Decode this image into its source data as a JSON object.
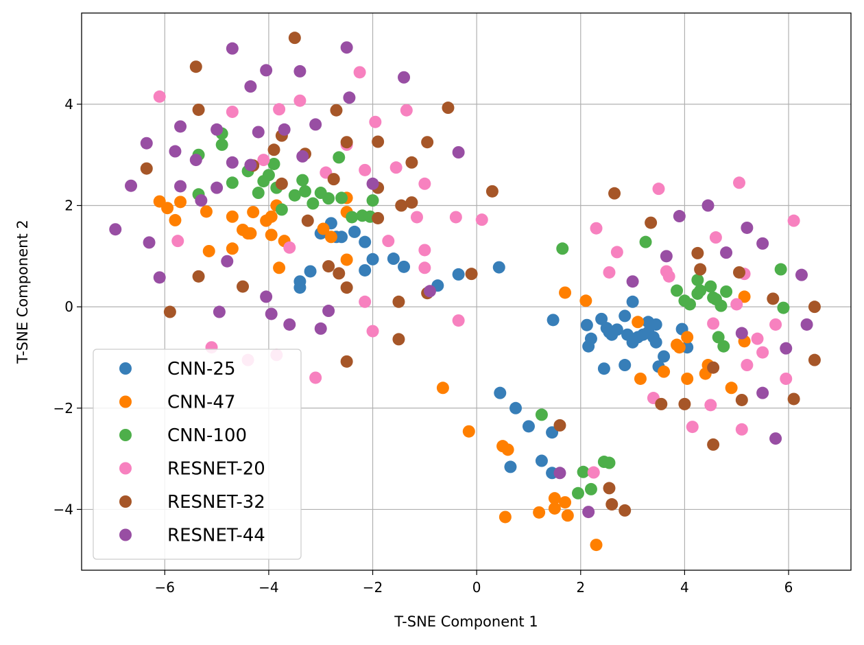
{
  "chart_data": {
    "type": "scatter",
    "title": "",
    "xlabel": "T-SNE Component 1",
    "ylabel": "T-SNE Component 2",
    "xlim": [
      -7.6,
      7.2
    ],
    "ylim": [
      -5.2,
      5.8
    ],
    "xticks": [
      -6,
      -4,
      -2,
      0,
      2,
      4,
      6
    ],
    "yticks": [
      -4,
      -2,
      0,
      2,
      4
    ],
    "xtick_labels": [
      "−6",
      "−4",
      "−2",
      "0",
      "2",
      "4",
      "6"
    ],
    "ytick_labels": [
      "−4",
      "−2",
      "0",
      "2",
      "4"
    ],
    "grid": true,
    "legend_position": "bottom-left",
    "series": [
      {
        "name": "CNN-25",
        "color": "#377eb8",
        "points": [
          [
            -3.4,
            0.5
          ],
          [
            -3.4,
            0.38
          ],
          [
            -3.2,
            0.7
          ],
          [
            -3.0,
            1.45
          ],
          [
            -2.8,
            1.65
          ],
          [
            -2.7,
            1.38
          ],
          [
            -2.6,
            1.38
          ],
          [
            -2.35,
            1.48
          ],
          [
            -2.15,
            1.28
          ],
          [
            -2.15,
            0.72
          ],
          [
            -2.0,
            0.94
          ],
          [
            -1.6,
            0.95
          ],
          [
            -1.4,
            0.79
          ],
          [
            -0.75,
            0.42
          ],
          [
            -0.35,
            0.64
          ],
          [
            0.43,
            0.78
          ],
          [
            1.47,
            -0.26
          ],
          [
            2.12,
            -0.36
          ],
          [
            2.15,
            -0.78
          ],
          [
            2.2,
            -0.63
          ],
          [
            2.4,
            -0.24
          ],
          [
            2.45,
            -1.22
          ],
          [
            2.5,
            -0.42
          ],
          [
            2.55,
            -0.5
          ],
          [
            2.6,
            -0.55
          ],
          [
            2.7,
            -0.45
          ],
          [
            2.85,
            -0.18
          ],
          [
            2.85,
            -1.15
          ],
          [
            2.9,
            -0.55
          ],
          [
            3.0,
            -0.7
          ],
          [
            3.0,
            0.1
          ],
          [
            3.1,
            -0.6
          ],
          [
            3.2,
            -0.55
          ],
          [
            3.3,
            -0.3
          ],
          [
            3.3,
            -0.5
          ],
          [
            3.4,
            -0.6
          ],
          [
            3.45,
            -0.7
          ],
          [
            3.45,
            -0.35
          ],
          [
            3.5,
            -1.18
          ],
          [
            3.6,
            -0.98
          ],
          [
            3.95,
            -0.44
          ],
          [
            4.05,
            -0.8
          ],
          [
            0.45,
            -1.7
          ],
          [
            0.65,
            -3.16
          ],
          [
            0.75,
            -2.0
          ],
          [
            1.0,
            -2.36
          ],
          [
            1.25,
            -3.04
          ],
          [
            1.45,
            -2.48
          ],
          [
            1.45,
            -3.28
          ]
        ]
      },
      {
        "name": "CNN-47",
        "color": "#ff7f00",
        "points": [
          [
            -6.1,
            2.08
          ],
          [
            -5.95,
            1.95
          ],
          [
            -5.8,
            1.71
          ],
          [
            -5.7,
            2.07
          ],
          [
            -5.2,
            1.88
          ],
          [
            -5.15,
            1.1
          ],
          [
            -4.7,
            1.78
          ],
          [
            -4.7,
            1.15
          ],
          [
            -4.5,
            1.52
          ],
          [
            -4.4,
            1.45
          ],
          [
            -4.35,
            1.45
          ],
          [
            -4.3,
            1.87
          ],
          [
            -4.05,
            1.7
          ],
          [
            -3.95,
            1.78
          ],
          [
            -3.95,
            1.42
          ],
          [
            -3.85,
            2.0
          ],
          [
            -3.8,
            0.77
          ],
          [
            -3.7,
            1.3
          ],
          [
            -2.95,
            1.54
          ],
          [
            -2.8,
            1.38
          ],
          [
            -2.5,
            2.15
          ],
          [
            -2.5,
            1.87
          ],
          [
            -2.5,
            0.93
          ],
          [
            0.5,
            -2.75
          ],
          [
            0.55,
            -4.15
          ],
          [
            0.6,
            -2.82
          ],
          [
            -0.15,
            -2.46
          ],
          [
            -0.65,
            -1.6
          ],
          [
            1.2,
            -4.06
          ],
          [
            1.5,
            -3.78
          ],
          [
            1.5,
            -3.98
          ],
          [
            1.7,
            -3.86
          ],
          [
            1.75,
            -4.12
          ],
          [
            2.3,
            -4.7
          ],
          [
            1.7,
            0.28
          ],
          [
            2.1,
            0.12
          ],
          [
            3.1,
            -0.3
          ],
          [
            3.15,
            -1.42
          ],
          [
            3.6,
            -1.28
          ],
          [
            3.85,
            -0.75
          ],
          [
            3.9,
            -0.8
          ],
          [
            4.05,
            -0.6
          ],
          [
            4.05,
            -1.42
          ],
          [
            4.4,
            -1.32
          ],
          [
            4.45,
            -1.15
          ],
          [
            4.9,
            -1.6
          ],
          [
            5.15,
            -0.68
          ],
          [
            5.15,
            0.2
          ]
        ]
      },
      {
        "name": "CNN-100",
        "color": "#4daf4a",
        "points": [
          [
            -5.35,
            3.0
          ],
          [
            -5.35,
            2.22
          ],
          [
            -4.9,
            3.42
          ],
          [
            -4.9,
            3.2
          ],
          [
            -4.7,
            2.45
          ],
          [
            -4.4,
            2.68
          ],
          [
            -4.2,
            2.25
          ],
          [
            -4.1,
            2.48
          ],
          [
            -4.0,
            2.6
          ],
          [
            -3.9,
            2.82
          ],
          [
            -3.85,
            2.35
          ],
          [
            -3.75,
            1.92
          ],
          [
            -3.5,
            2.2
          ],
          [
            -3.35,
            2.5
          ],
          [
            -3.3,
            2.28
          ],
          [
            -3.15,
            2.04
          ],
          [
            -3.0,
            2.25
          ],
          [
            -2.85,
            2.14
          ],
          [
            -2.65,
            2.95
          ],
          [
            -2.6,
            2.15
          ],
          [
            -2.4,
            1.77
          ],
          [
            -2.2,
            1.8
          ],
          [
            -2.05,
            1.78
          ],
          [
            -2.0,
            2.1
          ],
          [
            1.65,
            1.15
          ],
          [
            3.25,
            1.28
          ],
          [
            3.85,
            0.32
          ],
          [
            4.0,
            0.12
          ],
          [
            4.1,
            0.05
          ],
          [
            4.25,
            0.53
          ],
          [
            4.25,
            0.26
          ],
          [
            4.3,
            0.32
          ],
          [
            4.5,
            0.4
          ],
          [
            4.55,
            0.18
          ],
          [
            4.6,
            0.15
          ],
          [
            4.65,
            -0.6
          ],
          [
            4.7,
            0.02
          ],
          [
            4.75,
            -0.78
          ],
          [
            4.8,
            0.3
          ],
          [
            5.85,
            0.74
          ],
          [
            5.9,
            -0.02
          ],
          [
            1.25,
            -2.13
          ],
          [
            1.95,
            -3.68
          ],
          [
            2.05,
            -3.26
          ],
          [
            2.2,
            -3.6
          ],
          [
            2.45,
            -3.06
          ],
          [
            2.55,
            -3.08
          ]
        ]
      },
      {
        "name": "RESNET-20",
        "color": "#f781bf",
        "points": [
          [
            -6.1,
            4.15
          ],
          [
            -5.75,
            1.3
          ],
          [
            -5.1,
            -0.8
          ],
          [
            -4.7,
            3.85
          ],
          [
            -4.4,
            -1.05
          ],
          [
            -4.1,
            2.9
          ],
          [
            -3.8,
            3.9
          ],
          [
            -3.85,
            -0.95
          ],
          [
            -3.6,
            1.17
          ],
          [
            -3.4,
            4.07
          ],
          [
            -3.1,
            -1.4
          ],
          [
            -2.9,
            2.65
          ],
          [
            -2.5,
            3.2
          ],
          [
            -2.25,
            4.63
          ],
          [
            -2.15,
            2.7
          ],
          [
            -2.15,
            0.1
          ],
          [
            -1.95,
            3.65
          ],
          [
            -2.0,
            -0.48
          ],
          [
            -1.7,
            1.3
          ],
          [
            -1.55,
            2.75
          ],
          [
            -1.35,
            3.88
          ],
          [
            -1.15,
            1.77
          ],
          [
            -1.0,
            2.43
          ],
          [
            -1.0,
            1.12
          ],
          [
            -1.0,
            0.77
          ],
          [
            -0.4,
            1.77
          ],
          [
            -0.35,
            -0.27
          ],
          [
            0.1,
            1.72
          ],
          [
            2.3,
            1.55
          ],
          [
            2.55,
            0.68
          ],
          [
            2.7,
            1.08
          ],
          [
            3.5,
            2.33
          ],
          [
            3.65,
            0.7
          ],
          [
            3.7,
            0.6
          ],
          [
            3.4,
            -1.8
          ],
          [
            4.15,
            -2.37
          ],
          [
            4.5,
            -1.94
          ],
          [
            4.55,
            -0.33
          ],
          [
            4.6,
            1.37
          ],
          [
            5.0,
            0.05
          ],
          [
            5.05,
            2.45
          ],
          [
            5.1,
            -2.42
          ],
          [
            5.15,
            0.65
          ],
          [
            5.2,
            -1.15
          ],
          [
            5.4,
            -0.63
          ],
          [
            5.5,
            -0.9
          ],
          [
            5.75,
            -0.35
          ],
          [
            5.95,
            -1.42
          ],
          [
            6.1,
            1.7
          ],
          [
            2.25,
            -3.27
          ]
        ]
      },
      {
        "name": "RESNET-32",
        "color": "#a65628",
        "points": [
          [
            -6.35,
            2.73
          ],
          [
            -5.9,
            -0.1
          ],
          [
            -5.4,
            4.74
          ],
          [
            -5.35,
            3.89
          ],
          [
            -5.35,
            0.6
          ],
          [
            -4.5,
            0.4
          ],
          [
            -4.3,
            2.79
          ],
          [
            -3.9,
            3.1
          ],
          [
            -3.75,
            3.38
          ],
          [
            -3.75,
            2.43
          ],
          [
            -3.5,
            5.31
          ],
          [
            -3.3,
            3.02
          ],
          [
            -3.25,
            1.7
          ],
          [
            -2.85,
            0.8
          ],
          [
            -2.75,
            2.52
          ],
          [
            -2.7,
            3.88
          ],
          [
            -2.65,
            0.66
          ],
          [
            -2.5,
            3.25
          ],
          [
            -2.5,
            0.38
          ],
          [
            -2.5,
            -1.08
          ],
          [
            -1.9,
            3.26
          ],
          [
            -1.9,
            2.35
          ],
          [
            -1.9,
            1.75
          ],
          [
            -1.5,
            0.1
          ],
          [
            -1.5,
            -0.64
          ],
          [
            -1.45,
            2.0
          ],
          [
            -1.25,
            2.06
          ],
          [
            -1.25,
            2.85
          ],
          [
            -0.95,
            3.25
          ],
          [
            -0.95,
            0.27
          ],
          [
            -0.55,
            3.93
          ],
          [
            -0.1,
            0.65
          ],
          [
            0.3,
            2.28
          ],
          [
            2.65,
            2.24
          ],
          [
            3.35,
            1.66
          ],
          [
            3.55,
            -1.92
          ],
          [
            4.0,
            -1.92
          ],
          [
            4.25,
            1.06
          ],
          [
            4.3,
            0.74
          ],
          [
            4.55,
            -1.2
          ],
          [
            4.55,
            -2.72
          ],
          [
            5.05,
            0.68
          ],
          [
            5.1,
            -1.84
          ],
          [
            5.7,
            0.16
          ],
          [
            6.1,
            -1.82
          ],
          [
            6.5,
            0.0
          ],
          [
            6.5,
            -1.05
          ],
          [
            1.6,
            -2.34
          ],
          [
            2.55,
            -3.58
          ],
          [
            2.6,
            -3.9
          ],
          [
            2.85,
            -4.02
          ]
        ]
      },
      {
        "name": "RESNET-44",
        "color": "#984ea3",
        "points": [
          [
            -6.95,
            1.53
          ],
          [
            -6.65,
            2.39
          ],
          [
            -6.35,
            3.23
          ],
          [
            -6.3,
            1.27
          ],
          [
            -6.1,
            0.58
          ],
          [
            -5.8,
            3.07
          ],
          [
            -5.7,
            3.56
          ],
          [
            -5.7,
            2.38
          ],
          [
            -5.4,
            2.9
          ],
          [
            -5.3,
            2.1
          ],
          [
            -5.0,
            3.5
          ],
          [
            -5.0,
            2.35
          ],
          [
            -4.95,
            -0.1
          ],
          [
            -4.8,
            0.9
          ],
          [
            -4.7,
            5.1
          ],
          [
            -4.7,
            2.85
          ],
          [
            -4.35,
            4.35
          ],
          [
            -4.35,
            2.8
          ],
          [
            -4.2,
            3.45
          ],
          [
            -4.05,
            4.67
          ],
          [
            -4.05,
            0.2
          ],
          [
            -3.95,
            -0.14
          ],
          [
            -3.7,
            3.5
          ],
          [
            -3.6,
            -0.35
          ],
          [
            -3.4,
            4.65
          ],
          [
            -3.35,
            2.97
          ],
          [
            -3.1,
            3.6
          ],
          [
            -3.0,
            -0.43
          ],
          [
            -2.85,
            -0.08
          ],
          [
            -2.5,
            5.12
          ],
          [
            -2.45,
            4.13
          ],
          [
            -2.0,
            2.43
          ],
          [
            -1.4,
            4.53
          ],
          [
            -0.9,
            0.31
          ],
          [
            -0.35,
            3.05
          ],
          [
            3.0,
            0.5
          ],
          [
            3.65,
            1.0
          ],
          [
            3.9,
            1.79
          ],
          [
            4.45,
            2.0
          ],
          [
            4.8,
            1.07
          ],
          [
            5.1,
            -0.52
          ],
          [
            5.2,
            1.56
          ],
          [
            5.5,
            1.25
          ],
          [
            5.5,
            -1.7
          ],
          [
            5.75,
            -2.6
          ],
          [
            5.95,
            -0.82
          ],
          [
            6.25,
            0.63
          ],
          [
            6.35,
            -0.35
          ],
          [
            1.6,
            -3.28
          ],
          [
            2.15,
            -4.05
          ]
        ]
      }
    ]
  }
}
